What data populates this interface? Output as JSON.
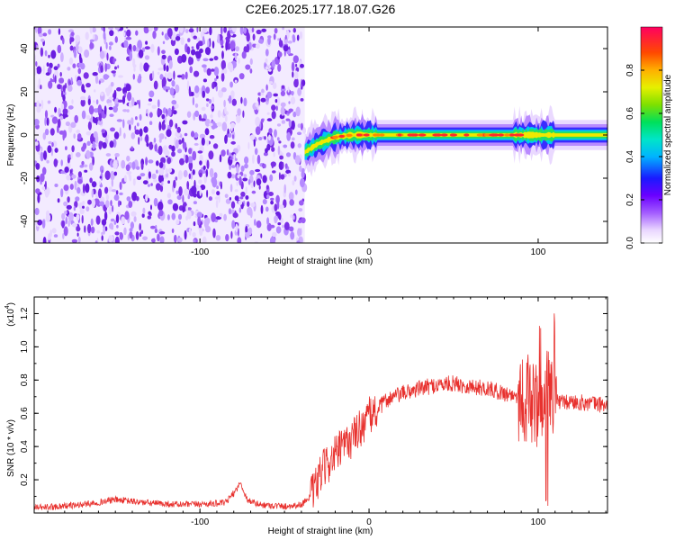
{
  "title": "C2E6.2025.177.18.07.G26",
  "colors": {
    "snr_line": "#e8312e",
    "noise_purple": "#7b2fe6",
    "axis": "#000000"
  },
  "chart_data": [
    {
      "type": "heatmap",
      "name": "spectrogram",
      "xlabel": "Height of straight line (km)",
      "ylabel": "Frequency (Hz)",
      "xlim": [
        -198,
        141
      ],
      "ylim": [
        -50,
        50
      ],
      "x_ticks": [
        -100,
        0,
        100
      ],
      "x_tick_labels": [
        "-100",
        "0",
        "100"
      ],
      "y_ticks": [
        -40,
        -20,
        0,
        20,
        40
      ],
      "y_tick_labels": [
        "-40",
        "-20",
        "0",
        "20",
        "40"
      ],
      "noise_region_x": [
        -198,
        -38
      ],
      "signal_start_x": -38,
      "signal_track": [
        {
          "x": -38,
          "f": -8
        },
        {
          "x": -30,
          "f": -4
        },
        {
          "x": -20,
          "f": -1
        },
        {
          "x": -10,
          "f": 0
        },
        {
          "x": 0,
          "f": 0
        },
        {
          "x": 50,
          "f": 0
        },
        {
          "x": 100,
          "f": 0
        },
        {
          "x": 141,
          "f": 0
        }
      ],
      "colorbar": {
        "label": "Normalized spectral amplitude",
        "range": [
          0,
          1
        ],
        "ticks": [
          0.0,
          0.2,
          0.4,
          0.6,
          0.8
        ],
        "tick_labels": [
          "0.0",
          "0.2",
          "0.4",
          "0.6",
          "0.8"
        ]
      }
    },
    {
      "type": "line",
      "name": "snr",
      "xlabel": "Height of straight line (km)",
      "ylabel": "SNR (10 * v/v)",
      "scale_label": "(x10",
      "scale_exp": "4",
      "scale_close": ")",
      "xlim": [
        -198,
        141
      ],
      "ylim": [
        0,
        1.3
      ],
      "x_ticks": [
        -100,
        0,
        100
      ],
      "x_tick_labels": [
        "-100",
        "0",
        "100"
      ],
      "y_ticks": [
        0.2,
        0.4,
        0.6,
        0.8,
        1.0,
        1.2
      ],
      "y_tick_labels": [
        "0.2",
        "0.4",
        "0.6",
        "0.8",
        "1.0",
        "1.2"
      ],
      "series": [
        {
          "x": [
            -198,
            -170,
            -150,
            -130,
            -110,
            -85,
            -80,
            -76,
            -72,
            -65,
            -50,
            -40,
            -33,
            -28,
            -20,
            -10,
            0,
            5,
            10,
            20,
            30,
            40,
            50,
            60,
            70,
            80,
            90,
            95,
            100,
            105,
            110,
            115,
            120,
            130,
            141
          ],
          "y": [
            0.03,
            0.05,
            0.08,
            0.06,
            0.05,
            0.06,
            0.12,
            0.18,
            0.08,
            0.05,
            0.04,
            0.05,
            0.12,
            0.25,
            0.35,
            0.45,
            0.58,
            0.62,
            0.68,
            0.72,
            0.75,
            0.77,
            0.78,
            0.76,
            0.75,
            0.72,
            0.7,
            0.68,
            0.65,
            0.7,
            0.68,
            0.66,
            0.67,
            0.66,
            0.65
          ]
        }
      ]
    }
  ]
}
